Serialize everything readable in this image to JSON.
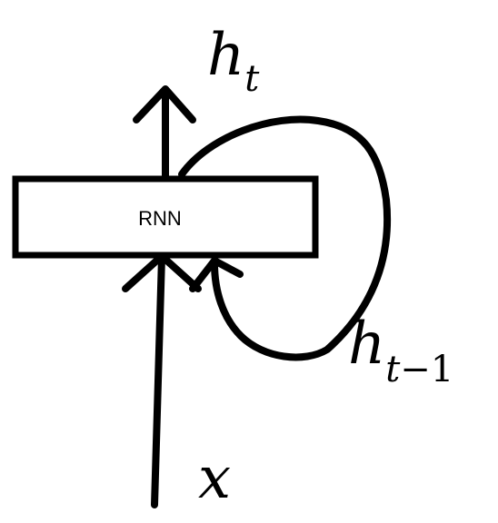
{
  "rnn_box": {
    "label": "RNN"
  },
  "output_label": {
    "base": "h",
    "subscript": "t"
  },
  "recurrent_label": {
    "base": "h",
    "subscript_var": "t",
    "subscript_rest": "−1"
  },
  "input_label": {
    "text": "x"
  },
  "colors": {
    "ink": "#000000",
    "background": "#ffffff"
  }
}
